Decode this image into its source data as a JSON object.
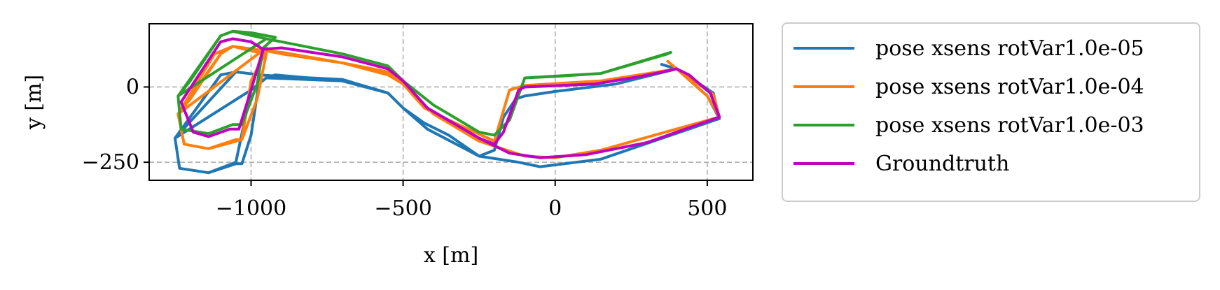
{
  "chart_data": {
    "type": "line",
    "title": "",
    "xlabel": "x [m]",
    "ylabel": "y [m]",
    "xlim": [
      -1335,
      650
    ],
    "ylim": [
      -310,
      210
    ],
    "xticks": [
      -1000,
      -500,
      0,
      500
    ],
    "xtick_labels": [
      "−1000",
      "−500",
      "0",
      "500"
    ],
    "yticks": [
      0,
      -250
    ],
    "ytick_labels": [
      "0",
      "−250"
    ],
    "grid": true,
    "legend_position": "outside-right",
    "series": [
      {
        "name": "pose xsens rotVar1.0e-05",
        "color": "#1f77b4",
        "points": [
          [
            -1000,
            -10
          ],
          [
            -1250,
            -170
          ],
          [
            -1235,
            -270
          ],
          [
            -1140,
            -285
          ],
          [
            -1050,
            -255
          ],
          [
            -1030,
            -255
          ],
          [
            -1000,
            -160
          ],
          [
            -970,
            40
          ],
          [
            -1050,
            50
          ],
          [
            -1100,
            40
          ],
          [
            -1250,
            -170
          ],
          [
            -1000,
            -10
          ],
          [
            -950,
            30
          ],
          [
            -700,
            20
          ],
          [
            -550,
            -20
          ],
          [
            -500,
            -70
          ],
          [
            -420,
            -140
          ],
          [
            -250,
            -230
          ],
          [
            -120,
            -250
          ],
          [
            -50,
            -265
          ],
          [
            150,
            -240
          ],
          [
            540,
            -105
          ],
          [
            500,
            -30
          ],
          [
            400,
            60
          ],
          [
            200,
            10
          ],
          [
            0,
            -15
          ],
          [
            -100,
            -30
          ],
          [
            -130,
            -40
          ],
          [
            -170,
            -100
          ],
          [
            -200,
            -210
          ],
          [
            -250,
            -230
          ],
          [
            -350,
            -160
          ],
          [
            -430,
            -120
          ],
          [
            -500,
            -70
          ],
          [
            -550,
            -20
          ],
          [
            -700,
            20
          ],
          [
            -920,
            40
          ],
          [
            -950,
            30
          ],
          [
            -1000,
            -10
          ],
          [
            -1050,
            -250
          ],
          [
            -1140,
            -285
          ],
          [
            -1235,
            -270
          ],
          [
            -1250,
            -170
          ],
          [
            -1050,
            50
          ],
          [
            -970,
            40
          ],
          [
            -900,
            35
          ],
          [
            -700,
            25
          ],
          [
            -550,
            -20
          ],
          [
            -500,
            -70
          ],
          [
            -420,
            -140
          ],
          [
            -250,
            -230
          ],
          [
            -120,
            -250
          ],
          [
            -50,
            -265
          ],
          [
            150,
            -240
          ],
          [
            540,
            -105
          ],
          [
            520,
            -20
          ],
          [
            400,
            60
          ],
          [
            350,
            75
          ]
        ]
      },
      {
        "name": "pose xsens rotVar1.0e-04",
        "color": "#ff7f0e",
        "points": [
          [
            -950,
            130
          ],
          [
            -1240,
            -90
          ],
          [
            -1220,
            -190
          ],
          [
            -1140,
            -205
          ],
          [
            -1050,
            -175
          ],
          [
            -1030,
            -175
          ],
          [
            -980,
            -40
          ],
          [
            -950,
            110
          ],
          [
            -1000,
            120
          ],
          [
            -1060,
            135
          ],
          [
            -1120,
            110
          ],
          [
            -1240,
            -90
          ],
          [
            -1200,
            -40
          ],
          [
            -1100,
            110
          ],
          [
            -1060,
            135
          ],
          [
            -950,
            120
          ],
          [
            -900,
            110
          ],
          [
            -700,
            80
          ],
          [
            -550,
            50
          ],
          [
            -500,
            10
          ],
          [
            -400,
            -90
          ],
          [
            -250,
            -180
          ],
          [
            -100,
            -230
          ],
          [
            0,
            -235
          ],
          [
            150,
            -210
          ],
          [
            540,
            -100
          ],
          [
            500,
            -30
          ],
          [
            400,
            60
          ],
          [
            150,
            20
          ],
          [
            -100,
            5
          ],
          [
            -150,
            -10
          ],
          [
            -200,
            -180
          ],
          [
            -350,
            -110
          ],
          [
            -430,
            -70
          ],
          [
            -500,
            10
          ],
          [
            -550,
            40
          ],
          [
            -700,
            80
          ],
          [
            -900,
            110
          ],
          [
            -950,
            120
          ],
          [
            -1000,
            20
          ],
          [
            -1030,
            -175
          ],
          [
            -1140,
            -205
          ],
          [
            -1220,
            -190
          ],
          [
            -1240,
            -90
          ],
          [
            -1100,
            110
          ],
          [
            -1060,
            135
          ],
          [
            -950,
            120
          ],
          [
            -900,
            115
          ],
          [
            -700,
            80
          ],
          [
            -550,
            45
          ],
          [
            -500,
            10
          ],
          [
            -400,
            -90
          ],
          [
            -250,
            -180
          ],
          [
            -100,
            -230
          ],
          [
            0,
            -235
          ],
          [
            150,
            -210
          ],
          [
            540,
            -100
          ],
          [
            520,
            -25
          ],
          [
            400,
            60
          ],
          [
            370,
            85
          ]
        ]
      },
      {
        "name": "pose xsens rotVar1.0e-03",
        "color": "#2ca02c",
        "points": [
          [
            -950,
            160
          ],
          [
            -1240,
            -30
          ],
          [
            -1230,
            -140
          ],
          [
            -1140,
            -155
          ],
          [
            -1060,
            -125
          ],
          [
            -1030,
            -125
          ],
          [
            -980,
            10
          ],
          [
            -960,
            130
          ],
          [
            -920,
            165
          ],
          [
            -1000,
            180
          ],
          [
            -1060,
            185
          ],
          [
            -1100,
            170
          ],
          [
            -1240,
            -30
          ],
          [
            -1200,
            20
          ],
          [
            -1100,
            170
          ],
          [
            -1060,
            185
          ],
          [
            -950,
            160
          ],
          [
            -900,
            150
          ],
          [
            -700,
            110
          ],
          [
            -550,
            70
          ],
          [
            -500,
            20
          ],
          [
            -400,
            -60
          ],
          [
            -250,
            -150
          ],
          [
            -200,
            -160
          ],
          [
            -150,
            -110
          ],
          [
            -100,
            30
          ],
          [
            0,
            35
          ],
          [
            150,
            45
          ],
          [
            370,
            110
          ],
          [
            380,
            115
          ],
          [
            150,
            45
          ],
          [
            -100,
            30
          ],
          [
            -150,
            -110
          ],
          [
            -200,
            -160
          ],
          [
            -250,
            -150
          ],
          [
            -400,
            -60
          ],
          [
            -500,
            20
          ],
          [
            -550,
            70
          ],
          [
            -700,
            110
          ],
          [
            -900,
            150
          ],
          [
            -950,
            160
          ]
        ]
      },
      {
        "name": "Groundtruth",
        "color": "#c000c0",
        "points": [
          [
            -1230,
            -50
          ],
          [
            -1190,
            -150
          ],
          [
            -1140,
            -165
          ],
          [
            -1070,
            -140
          ],
          [
            -1040,
            -140
          ],
          [
            -1000,
            -10
          ],
          [
            -960,
            125
          ],
          [
            -900,
            130
          ],
          [
            -700,
            100
          ],
          [
            -550,
            60
          ],
          [
            -500,
            20
          ],
          [
            -420,
            -70
          ],
          [
            -250,
            -170
          ],
          [
            -150,
            -220
          ],
          [
            -50,
            -235
          ],
          [
            100,
            -225
          ],
          [
            300,
            -185
          ],
          [
            540,
            -100
          ],
          [
            510,
            -20
          ],
          [
            440,
            40
          ],
          [
            400,
            60
          ],
          [
            280,
            35
          ],
          [
            130,
            10
          ],
          [
            -100,
            0
          ],
          [
            -120,
            -10
          ],
          [
            -170,
            -150
          ],
          [
            -200,
            -190
          ],
          [
            -250,
            -170
          ],
          [
            -420,
            -70
          ],
          [
            -500,
            20
          ],
          [
            -550,
            60
          ],
          [
            -700,
            100
          ],
          [
            -900,
            130
          ],
          [
            -960,
            125
          ],
          [
            -1000,
            150
          ],
          [
            -1060,
            160
          ],
          [
            -1100,
            150
          ],
          [
            -1230,
            -50
          ]
        ]
      }
    ]
  }
}
